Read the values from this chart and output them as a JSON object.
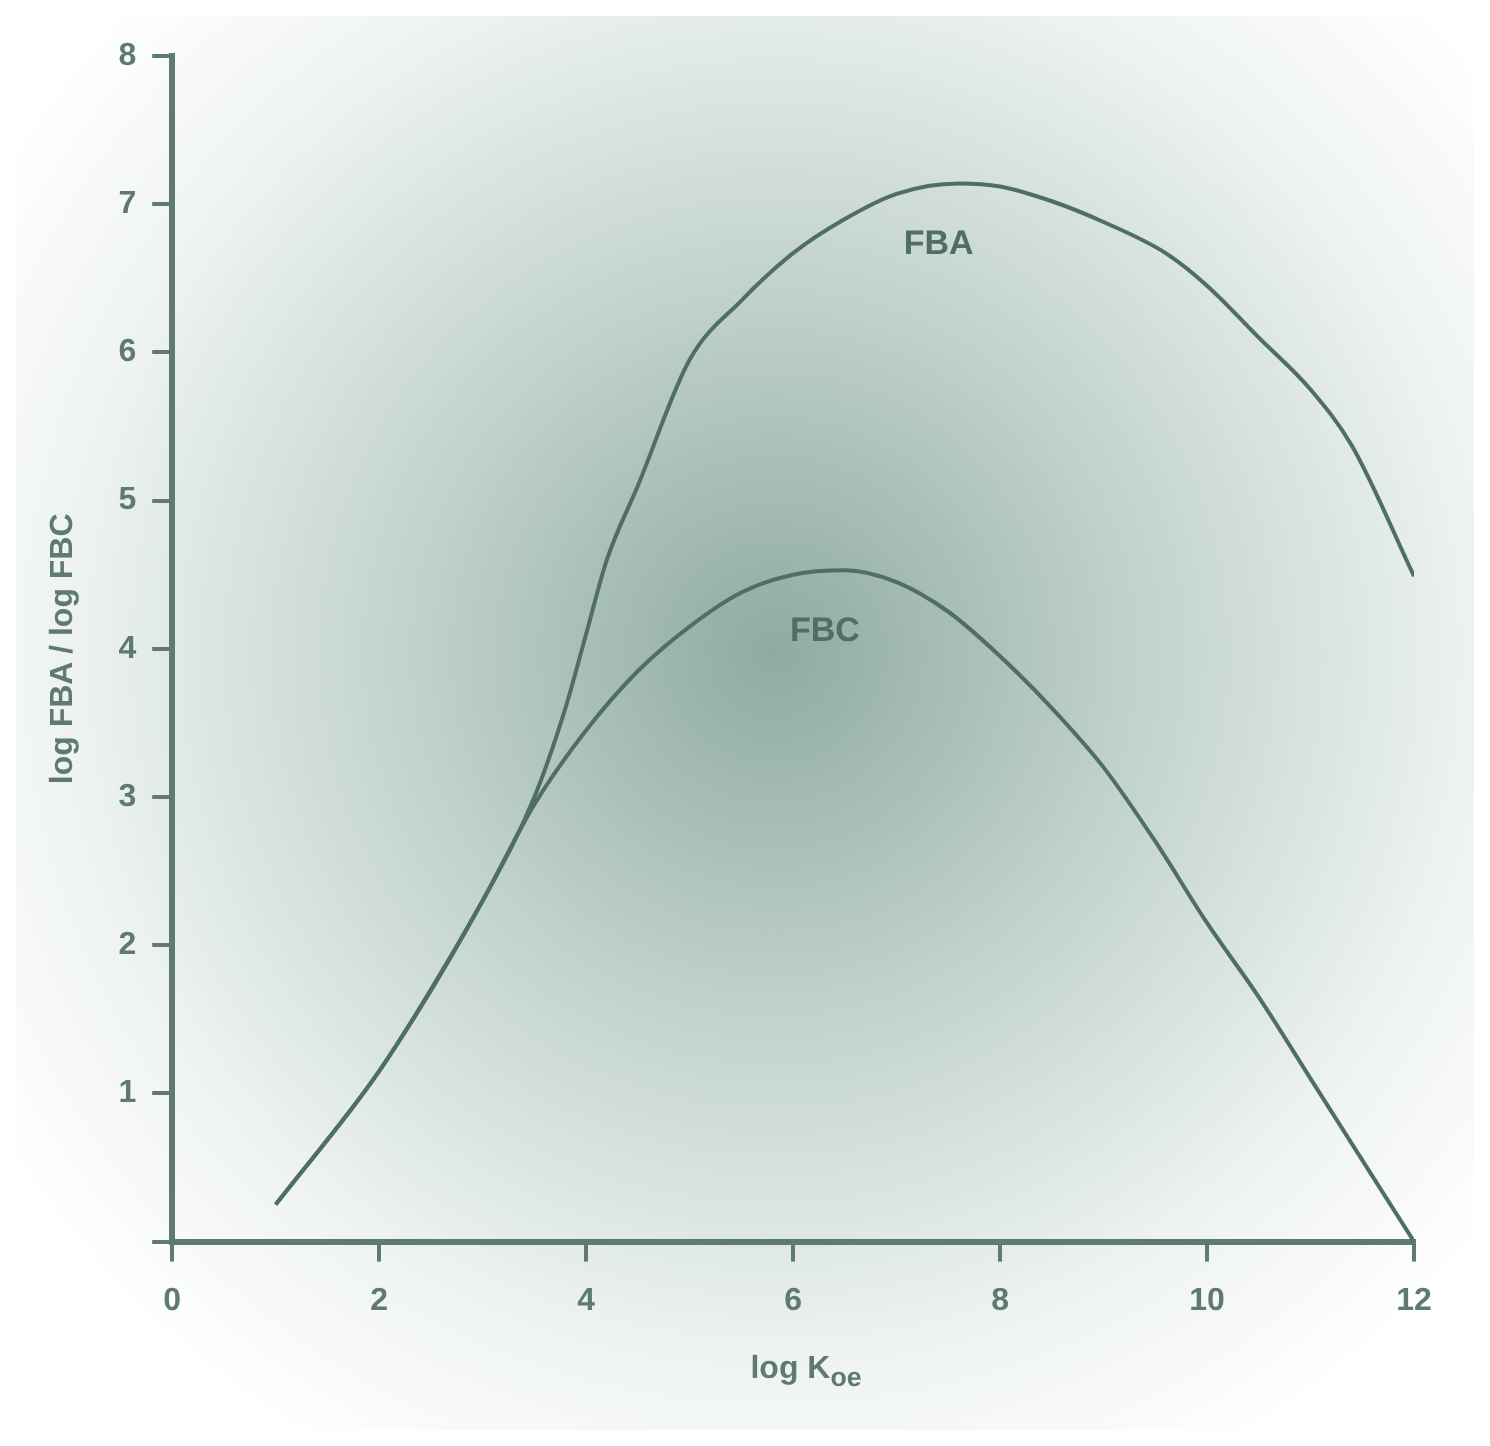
{
  "chart_data": {
    "type": "line",
    "xlabel": "log K$_{oe}$",
    "ylabel": "log FBA / log FBC",
    "xlim": [
      0,
      12
    ],
    "xticks": [
      0,
      2,
      4,
      6,
      8,
      10,
      12
    ],
    "ylim": [
      0,
      8
    ],
    "yticks": [
      {
        "value": 0,
        "label": null
      },
      1,
      2,
      3,
      4,
      5,
      6,
      7,
      8
    ],
    "grid": false,
    "legend": false,
    "marker": "none",
    "line_style": "solid",
    "series": [
      {
        "name": "FBA",
        "color": "#4f6e64",
        "x": [
          1,
          2,
          3,
          3.5,
          3.8,
          4,
          4.2,
          4.5,
          5,
          5.5,
          6,
          6.5,
          7,
          7.6,
          8,
          8.5,
          9,
          9.6,
          10,
          10.5,
          11,
          11.4,
          12
        ],
        "values": [
          0.25,
          1.15,
          2.3,
          3.0,
          3.6,
          4.1,
          4.6,
          5.1,
          5.95,
          6.35,
          6.67,
          6.9,
          7.07,
          7.14,
          7.12,
          7.02,
          6.88,
          6.67,
          6.45,
          6.1,
          5.75,
          5.37,
          4.49
        ]
      },
      {
        "name": "FBC",
        "color": "#4f6e64",
        "x": [
          1,
          2,
          2.5,
          3,
          3.5,
          4,
          4.5,
          5,
          5.5,
          6,
          6.5,
          7,
          7.5,
          8,
          8.5,
          9,
          9.5,
          10,
          10.5,
          11,
          11.5,
          12
        ],
        "values": [
          0.25,
          1.15,
          1.7,
          2.3,
          2.95,
          3.45,
          3.85,
          4.15,
          4.38,
          4.5,
          4.53,
          4.45,
          4.25,
          3.95,
          3.6,
          3.2,
          2.7,
          2.15,
          1.65,
          1.1,
          0.55,
          0
        ]
      }
    ]
  }
}
